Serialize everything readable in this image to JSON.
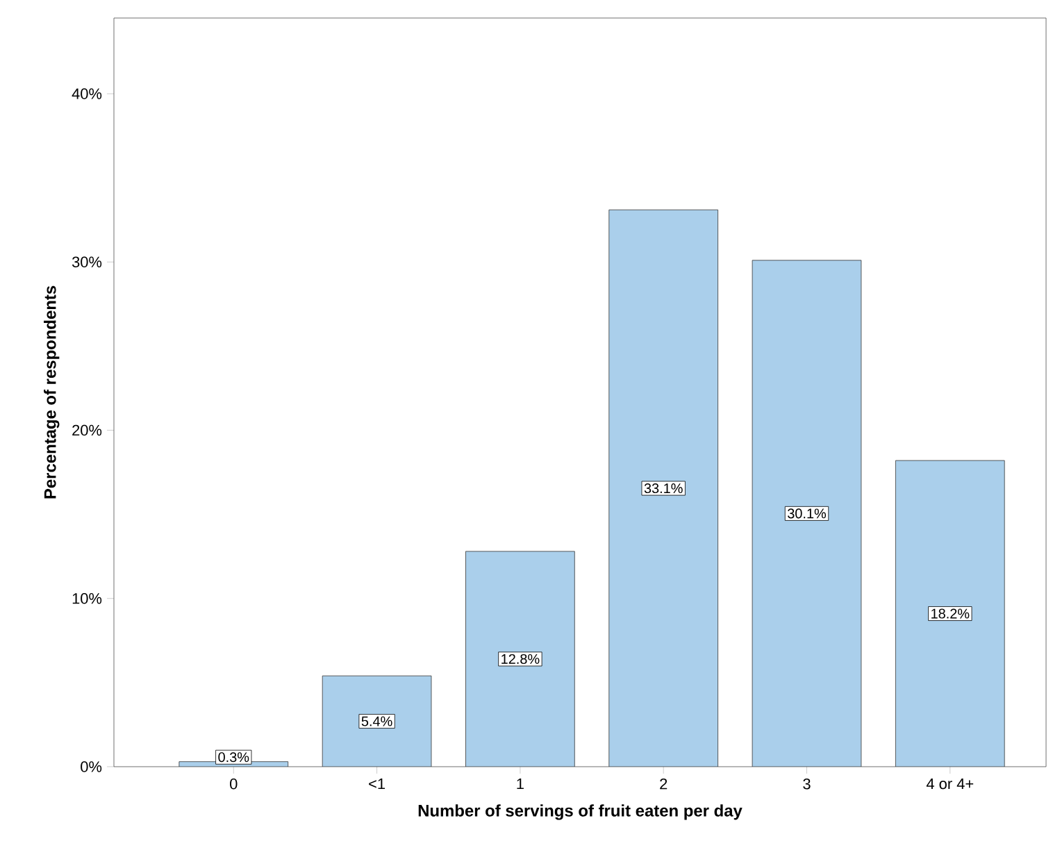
{
  "chart_data": {
    "type": "bar",
    "xlabel": "Number of servings of fruit eaten per day",
    "ylabel": "Percentage of respondents",
    "categories": [
      "0",
      "<1",
      "1",
      "2",
      "3",
      "4 or 4+"
    ],
    "values": [
      0.3,
      5.4,
      12.8,
      33.1,
      30.1,
      18.2
    ],
    "value_labels": [
      "0.3%",
      "5.4%",
      "12.8%",
      "33.1%",
      "30.1%",
      "18.2%"
    ],
    "color": "#aacfeb",
    "ylim": [
      0,
      44.5
    ],
    "yticks": [
      {
        "value": 0,
        "label": "0%"
      },
      {
        "value": 10,
        "label": "10%"
      },
      {
        "value": 20,
        "label": "20%"
      },
      {
        "value": 30,
        "label": "30%"
      },
      {
        "value": 40,
        "label": "40%"
      }
    ],
    "grid": false
  }
}
